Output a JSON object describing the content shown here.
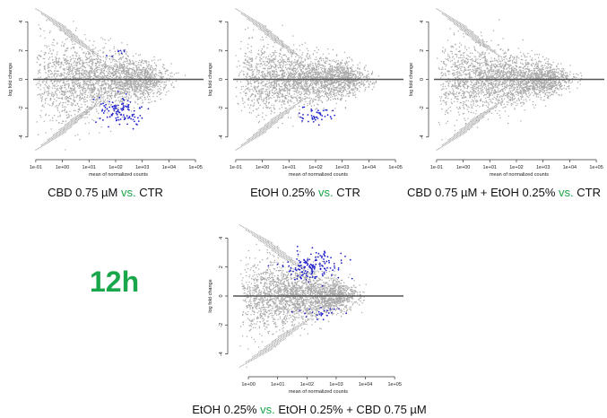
{
  "time_label": "12h",
  "colors": {
    "points": "#a9a9a9",
    "significant": "#2222cc",
    "zero_line": "#555555",
    "vs": "#1aa64a"
  },
  "chart_data": [
    {
      "type": "scatter",
      "subtype": "MA-plot",
      "caption": {
        "pre": "CBD 0.75 µM ",
        "vs": "vs.",
        "post": " CTR"
      },
      "xlabel": "mean of normalized counts",
      "ylabel": "log fold change",
      "x_scale": "log10",
      "xlim": [
        0.08,
        200000
      ],
      "ylim": [
        -5.2,
        5.2
      ],
      "x_ticks": [
        "1e-01",
        "1e+00",
        "1e+01",
        "1e+02",
        "1e+03",
        "1e+04",
        "1e+05"
      ],
      "y_ticks": [
        "-4",
        "-2",
        "0",
        "2",
        "4"
      ],
      "cloud": {
        "xmin": 0.1,
        "xmax": 50000,
        "spread": 1.5
      },
      "significant": [
        {
          "x": 150,
          "y": -2.2,
          "sx": 0.45,
          "sy": 0.45,
          "n": 110
        },
        {
          "x": 120,
          "y": 1.9,
          "sx": 0.3,
          "sy": 0.2,
          "n": 8
        }
      ]
    },
    {
      "type": "scatter",
      "subtype": "MA-plot",
      "caption": {
        "pre": "EtOH 0.25% ",
        "vs": "vs.",
        "post": " CTR"
      },
      "xlabel": "mean of normalized counts",
      "ylabel": "log fold change",
      "x_scale": "log10",
      "xlim": [
        0.08,
        200000
      ],
      "ylim": [
        -5.2,
        5.2
      ],
      "x_ticks": [
        "1e-01",
        "1e+00",
        "1e+01",
        "1e+02",
        "1e+03",
        "1e+04",
        "1e+05"
      ],
      "y_ticks": [
        "-4",
        "-2",
        "0",
        "2",
        "4"
      ],
      "cloud": {
        "xmin": 0.1,
        "xmax": 50000,
        "spread": 1.3
      },
      "significant": [
        {
          "x": 100,
          "y": -2.5,
          "sx": 0.3,
          "sy": 0.3,
          "n": 45
        }
      ]
    },
    {
      "type": "scatter",
      "subtype": "MA-plot",
      "caption": {
        "pre": "CBD 0.75 µM + EtOH 0.25% ",
        "vs": "vs.",
        "post": " CTR"
      },
      "xlabel": "mean of normalized counts",
      "ylabel": "log fold change",
      "x_scale": "log10",
      "xlim": [
        0.08,
        200000
      ],
      "ylim": [
        -5.2,
        5.2
      ],
      "x_ticks": [
        "1e-01",
        "1e+00",
        "1e+01",
        "1e+02",
        "1e+03",
        "1e+04",
        "1e+05"
      ],
      "y_ticks": [
        "-4",
        "-2",
        "0",
        "2",
        "4"
      ],
      "cloud": {
        "xmin": 0.1,
        "xmax": 60000,
        "spread": 1.3
      },
      "significant": []
    },
    {
      "type": "scatter",
      "subtype": "MA-plot",
      "caption": {
        "pre": "EtOH 0.25% ",
        "vs": "vs.",
        "post": " EtOH 0.25% + CBD 0.75 µM"
      },
      "xlabel": "mean of normalized counts",
      "ylabel": "log fold change",
      "x_scale": "log10",
      "xlim": [
        0.3,
        200000
      ],
      "ylim": [
        -5.2,
        5.2
      ],
      "x_ticks": [
        "1e+00",
        "1e+01",
        "1e+02",
        "1e+03",
        "1e+04",
        "1e+05"
      ],
      "y_ticks": [
        "-4",
        "-2",
        "0",
        "2",
        "4"
      ],
      "cloud": {
        "xmin": 0.5,
        "xmax": 20000,
        "spread": 1.3
      },
      "significant": [
        {
          "x": 180,
          "y": 2.1,
          "sx": 0.5,
          "sy": 0.5,
          "n": 150
        },
        {
          "x": 300,
          "y": -1.2,
          "sx": 0.4,
          "sy": 0.2,
          "n": 25
        }
      ]
    }
  ]
}
